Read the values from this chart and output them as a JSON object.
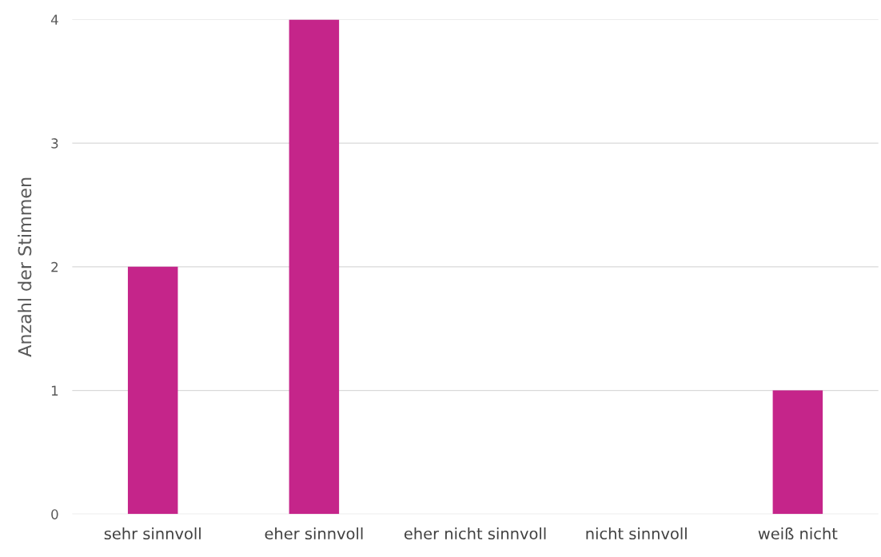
{
  "chart_data": {
    "type": "bar",
    "ylabel": "Anzahl der Stimmen",
    "categories": [
      "sehr sinnvoll",
      "eher sinnvoll",
      "eher nicht sinnvoll",
      "nicht sinnvoll",
      "weiß nicht"
    ],
    "values": [
      2,
      4,
      0,
      0,
      1
    ],
    "color": "#c5258a",
    "ylim": [
      0,
      4
    ],
    "yticks": [
      0,
      1,
      2,
      3,
      4
    ],
    "grid": "y"
  }
}
